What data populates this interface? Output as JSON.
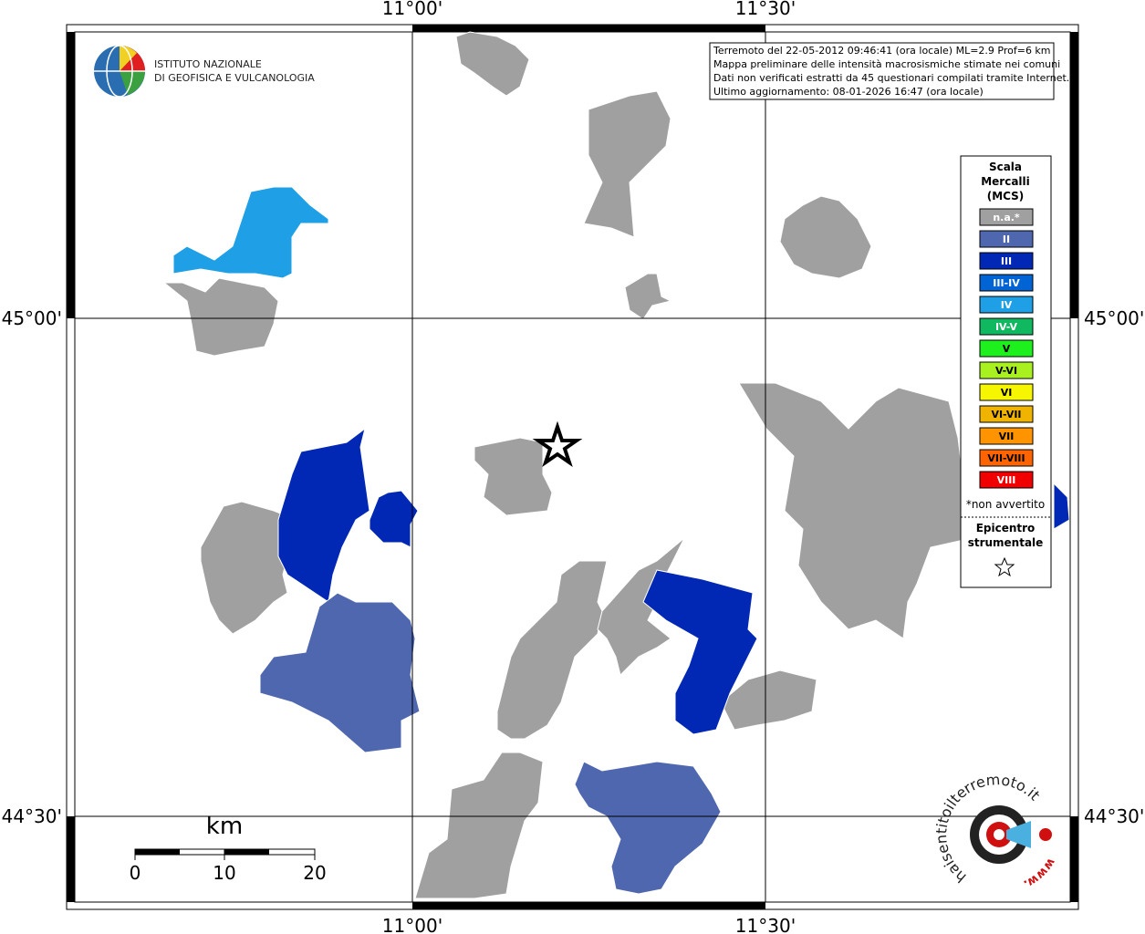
{
  "axes": {
    "top": [
      "11°00'",
      "11°30'"
    ],
    "bottom": [
      "11°00'",
      "11°30'"
    ],
    "left": [
      "45°00'",
      "44°30'"
    ],
    "right": [
      "45°00'",
      "44°30'"
    ]
  },
  "logo": {
    "line1": "ISTITUTO NAZIONALE",
    "line2": "DI GEOFISICA E VULCANOLOGIA"
  },
  "info": [
    "Terremoto del 22-05-2012 09:46:41 (ora locale) ML=2.9 Prof=6 km",
    "Mappa preliminare delle intensità macrosismiche stimate nei comuni",
    "Dati non verificati estratti da 45 questionari compilati tramite Internet.",
    "Ultimo aggiornamento: 08-01-2026 16:47 (ora locale)"
  ],
  "legend": {
    "title": [
      "Scala",
      "Mercalli",
      "(MCS)"
    ],
    "items": [
      {
        "label": "n.a.*",
        "color": "#a0a0a0"
      },
      {
        "label": "II",
        "color": "#4f67ae"
      },
      {
        "label": "III",
        "color": "#0028b4"
      },
      {
        "label": "III-IV",
        "color": "#0064d4"
      },
      {
        "label": "IV",
        "color": "#1e9fe6"
      },
      {
        "label": "IV-V",
        "color": "#10b860"
      },
      {
        "label": "V",
        "color": "#1ef01e"
      },
      {
        "label": "V-VI",
        "color": "#a8f020"
      },
      {
        "label": "VI",
        "color": "#f6f600"
      },
      {
        "label": "VI-VII",
        "color": "#f0b400"
      },
      {
        "label": "VII",
        "color": "#ff9400"
      },
      {
        "label": "VII-VIII",
        "color": "#ff6400"
      },
      {
        "label": "VIII",
        "color": "#f00000"
      }
    ],
    "note": "*non avvertito",
    "epicenter": [
      "Epicentro",
      "strumentale"
    ]
  },
  "scale_bar": {
    "unit": "km",
    "labels": [
      "0",
      "10",
      "20"
    ]
  },
  "brand": {
    "site": "haisentitoilterremoto.it",
    "prefix": "www."
  }
}
